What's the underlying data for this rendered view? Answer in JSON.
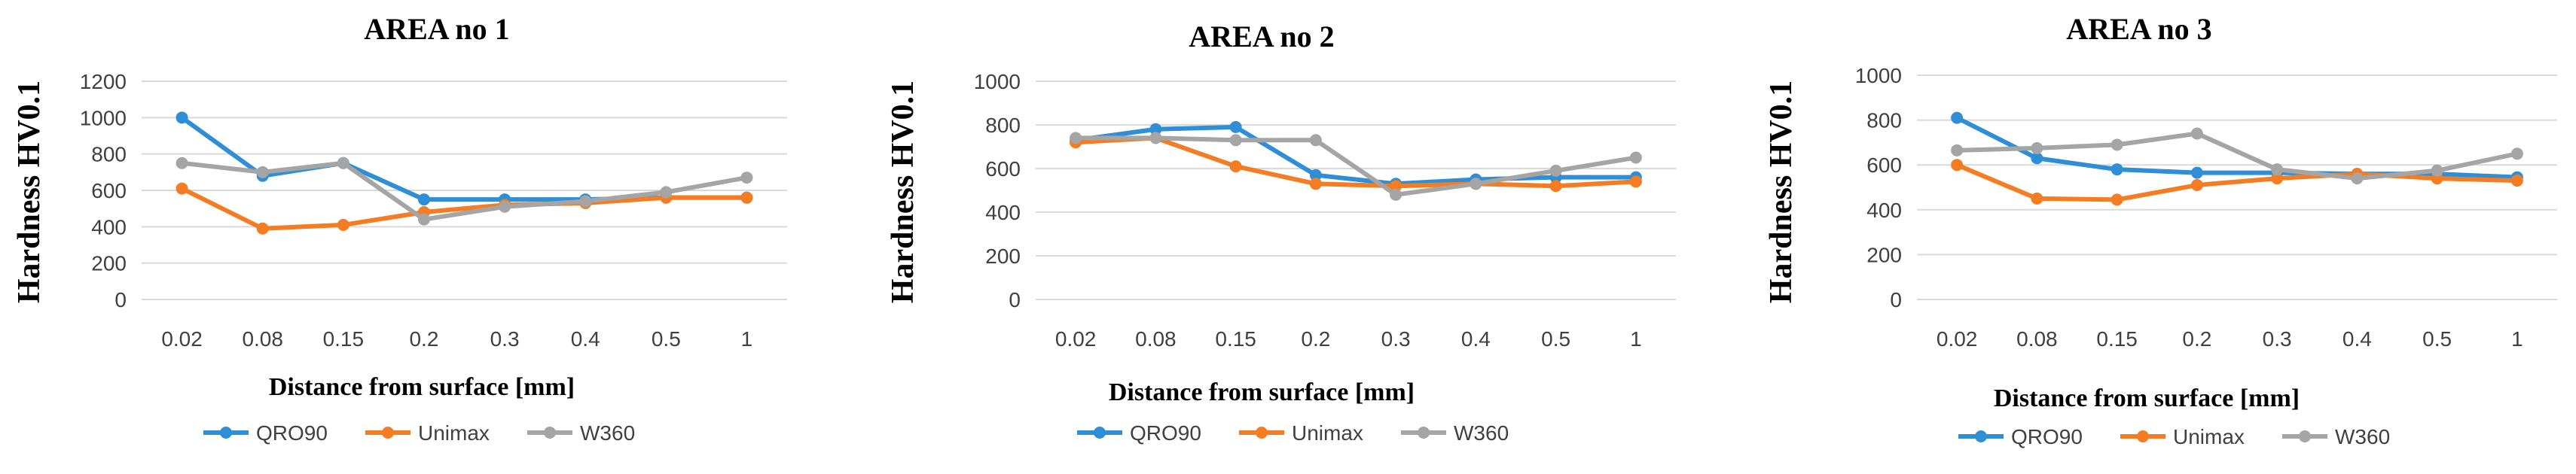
{
  "chart_data": [
    {
      "type": "line",
      "title": "AREA no 1",
      "xlabel": "Distance from surface [mm]",
      "ylabel": "Hardness  HV0.1",
      "categories": [
        "0.02",
        "0.08",
        "0.15",
        "0.2",
        "0.3",
        "0.4",
        "0.5",
        "1"
      ],
      "ylim": [
        0,
        1200
      ],
      "yticks": [
        "0",
        "200",
        "400",
        "600",
        "800",
        "1000",
        "1200"
      ],
      "grid": true,
      "legend": "bottom",
      "series": [
        {
          "name": "QRO90",
          "color": "#2e8fd6",
          "values": [
            1000,
            680,
            750,
            550,
            550,
            550,
            560,
            560
          ]
        },
        {
          "name": "Unimax",
          "color": "#f47c22",
          "values": [
            610,
            390,
            410,
            480,
            520,
            530,
            560,
            560
          ]
        },
        {
          "name": "W360",
          "color": "#a5a5a5",
          "values": [
            750,
            700,
            750,
            440,
            510,
            540,
            590,
            670
          ]
        }
      ]
    },
    {
      "type": "line",
      "title": "AREA no 2",
      "xlabel": "Distance from surface [mm]",
      "ylabel": "Hardness  HV0.1",
      "categories": [
        "0.02",
        "0.08",
        "0.15",
        "0.2",
        "0.3",
        "0.4",
        "0.5",
        "1"
      ],
      "ylim": [
        0,
        1000
      ],
      "yticks": [
        "0",
        "200",
        "400",
        "600",
        "800",
        "1000"
      ],
      "grid": true,
      "legend": "bottom",
      "series": [
        {
          "name": "QRO90",
          "color": "#2e8fd6",
          "values": [
            730,
            780,
            790,
            570,
            530,
            550,
            560,
            560
          ]
        },
        {
          "name": "Unimax",
          "color": "#f47c22",
          "values": [
            720,
            740,
            610,
            530,
            520,
            530,
            520,
            540
          ]
        },
        {
          "name": "W360",
          "color": "#a5a5a5",
          "values": [
            740,
            740,
            730,
            730,
            480,
            530,
            590,
            650
          ]
        }
      ]
    },
    {
      "type": "line",
      "title": "AREA no 3",
      "xlabel": "Distance from surface [mm]",
      "ylabel": "Hardness  HV0.1",
      "categories": [
        "0.02",
        "0.08",
        "0.15",
        "0.2",
        "0.3",
        "0.4",
        "0.5",
        "1"
      ],
      "ylim": [
        0,
        1000
      ],
      "yticks": [
        "0",
        "200",
        "400",
        "600",
        "800",
        "1000"
      ],
      "grid": true,
      "legend": "bottom",
      "series": [
        {
          "name": "QRO90",
          "color": "#2e8fd6",
          "values": [
            810,
            630,
            580,
            565,
            565,
            560,
            560,
            545
          ]
        },
        {
          "name": "Unimax",
          "color": "#f47c22",
          "values": [
            600,
            450,
            445,
            510,
            540,
            560,
            540,
            530
          ]
        },
        {
          "name": "W360",
          "color": "#a5a5a5",
          "values": [
            665,
            675,
            690,
            740,
            580,
            540,
            575,
            650
          ]
        }
      ]
    }
  ]
}
